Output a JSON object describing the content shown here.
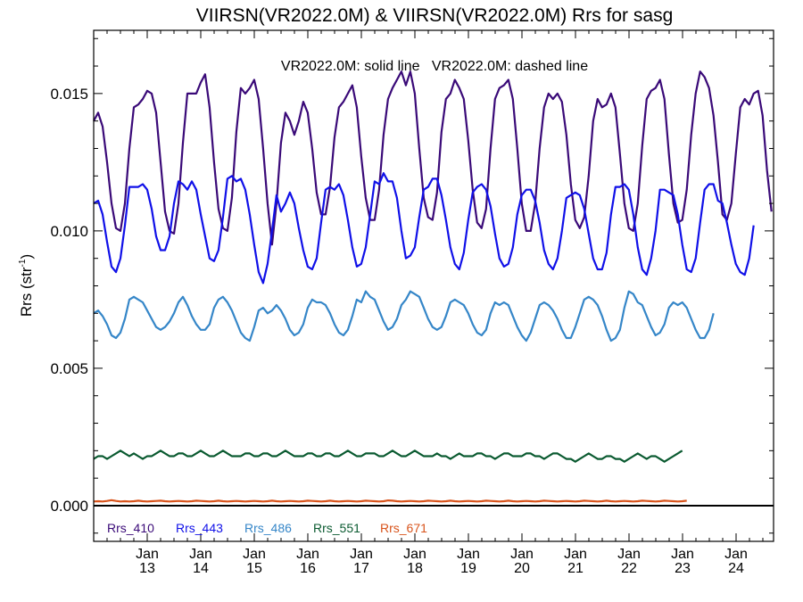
{
  "chart_data": {
    "type": "line",
    "title": "VIIRSN(VR2022.0M) & VIIRSN(VR2022.0M)  Rrs for sasg",
    "subtitle": "VR2022.0M: solid line   VR2022.0M: dashed line",
    "xlabel": "",
    "ylabel_main": "Rrs (str",
    "ylabel_sup": "-1",
    "ylabel_close": ")",
    "xlim": [
      12.0,
      24.7
    ],
    "ylim": [
      -0.0013,
      0.0173
    ],
    "x_ticks": [
      {
        "month": "Jan",
        "year": "13",
        "x": 13
      },
      {
        "month": "Jan",
        "year": "14",
        "x": 14
      },
      {
        "month": "Jan",
        "year": "15",
        "x": 15
      },
      {
        "month": "Jan",
        "year": "16",
        "x": 16
      },
      {
        "month": "Jan",
        "year": "17",
        "x": 17
      },
      {
        "month": "Jan",
        "year": "18",
        "x": 18
      },
      {
        "month": "Jan",
        "year": "19",
        "x": 19
      },
      {
        "month": "Jan",
        "year": "20",
        "x": 20
      },
      {
        "month": "Jan",
        "year": "21",
        "x": 21
      },
      {
        "month": "Jan",
        "year": "22",
        "x": 22
      },
      {
        "month": "Jan",
        "year": "23",
        "x": 23
      },
      {
        "month": "Jan",
        "year": "24",
        "x": 24
      }
    ],
    "y_ticks": [
      {
        "label": "0.000",
        "value": 0.0
      },
      {
        "label": "0.005",
        "value": 0.005
      },
      {
        "label": "0.010",
        "value": 0.01
      },
      {
        "label": "0.015",
        "value": 0.015
      }
    ],
    "zero_line": 0.0,
    "grid": false,
    "legend_position": "bottom-left",
    "series": [
      {
        "name": "Rrs_410",
        "color": "#3a0a78",
        "x_start": 12.0,
        "x_step": 0.0833,
        "values": [
          0.014,
          0.0143,
          0.0138,
          0.0125,
          0.011,
          0.0101,
          0.01,
          0.011,
          0.013,
          0.0145,
          0.0146,
          0.0148,
          0.0151,
          0.015,
          0.0143,
          0.0125,
          0.0107,
          0.01,
          0.0099,
          0.011,
          0.0132,
          0.015,
          0.015,
          0.015,
          0.0154,
          0.0157,
          0.0145,
          0.0125,
          0.0108,
          0.0101,
          0.01,
          0.0112,
          0.0136,
          0.0152,
          0.015,
          0.0152,
          0.0155,
          0.0148,
          0.013,
          0.011,
          0.0095,
          0.011,
          0.0132,
          0.0143,
          0.014,
          0.0135,
          0.014,
          0.0147,
          0.0143,
          0.013,
          0.0114,
          0.0106,
          0.0106,
          0.0116,
          0.0134,
          0.0145,
          0.0147,
          0.015,
          0.0153,
          0.0145,
          0.0127,
          0.0112,
          0.0104,
          0.0104,
          0.0115,
          0.0135,
          0.0148,
          0.0152,
          0.0155,
          0.0158,
          0.0153,
          0.0158,
          0.015,
          0.013,
          0.0112,
          0.0105,
          0.0104,
          0.0114,
          0.0136,
          0.0148,
          0.015,
          0.0155,
          0.0152,
          0.0148,
          0.0133,
          0.0115,
          0.0103,
          0.0101,
          0.0108,
          0.013,
          0.0148,
          0.0152,
          0.0153,
          0.0155,
          0.0148,
          0.013,
          0.011,
          0.01,
          0.01,
          0.011,
          0.013,
          0.0145,
          0.015,
          0.0148,
          0.015,
          0.0147,
          0.0135,
          0.0117,
          0.0104,
          0.0101,
          0.0105,
          0.012,
          0.014,
          0.0148,
          0.0145,
          0.0146,
          0.015,
          0.0145,
          0.0128,
          0.011,
          0.0101,
          0.01,
          0.011,
          0.0131,
          0.0148,
          0.0151,
          0.0152,
          0.0155,
          0.0148,
          0.0128,
          0.011,
          0.0103,
          0.0104,
          0.0115,
          0.0135,
          0.015,
          0.0158,
          0.0156,
          0.0152,
          0.0142,
          0.0125,
          0.0106,
          0.0104,
          0.011,
          0.0128,
          0.0145,
          0.0148,
          0.0146,
          0.015,
          0.0151,
          0.0142,
          0.0122,
          0.0107,
          0.0101,
          0.0105,
          0.0128
        ]
      },
      {
        "name": "Rrs_443",
        "color": "#1010e8",
        "x_start": 12.0,
        "x_step": 0.0833,
        "values": [
          0.011,
          0.0111,
          0.0106,
          0.0096,
          0.0087,
          0.0085,
          0.009,
          0.0102,
          0.0116,
          0.0116,
          0.0116,
          0.0117,
          0.0115,
          0.0108,
          0.0098,
          0.0093,
          0.0093,
          0.0098,
          0.011,
          0.0118,
          0.0117,
          0.0115,
          0.0118,
          0.0115,
          0.0106,
          0.0098,
          0.009,
          0.0089,
          0.0093,
          0.0105,
          0.0119,
          0.012,
          0.0118,
          0.0119,
          0.0115,
          0.0106,
          0.0095,
          0.0085,
          0.0081,
          0.0088,
          0.01,
          0.0113,
          0.0107,
          0.011,
          0.0114,
          0.011,
          0.0101,
          0.0093,
          0.0087,
          0.0086,
          0.009,
          0.0103,
          0.0115,
          0.0116,
          0.0115,
          0.0117,
          0.0113,
          0.0104,
          0.0094,
          0.0087,
          0.0088,
          0.0094,
          0.0106,
          0.0118,
          0.0117,
          0.0121,
          0.0118,
          0.0118,
          0.0112,
          0.01,
          0.009,
          0.0091,
          0.0094,
          0.0105,
          0.0115,
          0.0116,
          0.0119,
          0.0119,
          0.0113,
          0.0104,
          0.0094,
          0.0088,
          0.0086,
          0.0092,
          0.0104,
          0.0114,
          0.0116,
          0.0117,
          0.0115,
          0.0109,
          0.0099,
          0.009,
          0.0087,
          0.0088,
          0.0094,
          0.0106,
          0.0113,
          0.0115,
          0.0115,
          0.0111,
          0.0103,
          0.0093,
          0.0088,
          0.0086,
          0.009,
          0.01,
          0.0112,
          0.0113,
          0.0114,
          0.0113,
          0.0108,
          0.0099,
          0.009,
          0.0086,
          0.0086,
          0.0092,
          0.0106,
          0.0116,
          0.0116,
          0.0117,
          0.0115,
          0.0106,
          0.0094,
          0.0086,
          0.0084,
          0.009,
          0.01,
          0.0115,
          0.0115,
          0.0114,
          0.0113,
          0.0106,
          0.0095,
          0.0086,
          0.0085,
          0.009,
          0.0103,
          0.0115,
          0.0117,
          0.0117,
          0.0111,
          0.011,
          0.0103,
          0.0095,
          0.0088,
          0.0085,
          0.0084,
          0.009,
          0.0102
        ]
      },
      {
        "name": "Rrs_486",
        "color": "#3586c8",
        "x_start": 12.0,
        "x_step": 0.0833,
        "values": [
          0.007,
          0.0071,
          0.0069,
          0.0066,
          0.0062,
          0.0061,
          0.0063,
          0.0068,
          0.0075,
          0.0076,
          0.0075,
          0.0074,
          0.0071,
          0.0068,
          0.0065,
          0.0064,
          0.0065,
          0.0067,
          0.007,
          0.0074,
          0.0076,
          0.0073,
          0.0069,
          0.0066,
          0.0064,
          0.0064,
          0.0066,
          0.0072,
          0.0075,
          0.0076,
          0.0074,
          0.0071,
          0.0067,
          0.0063,
          0.0061,
          0.006,
          0.0065,
          0.0071,
          0.0072,
          0.007,
          0.0071,
          0.0073,
          0.0071,
          0.0068,
          0.0064,
          0.0062,
          0.0063,
          0.0066,
          0.0072,
          0.0075,
          0.0074,
          0.0074,
          0.0073,
          0.007,
          0.0066,
          0.0063,
          0.0062,
          0.0064,
          0.0069,
          0.0075,
          0.0074,
          0.0078,
          0.0076,
          0.0075,
          0.0071,
          0.0067,
          0.0064,
          0.0065,
          0.0068,
          0.0073,
          0.0075,
          0.0078,
          0.0077,
          0.0076,
          0.0072,
          0.0068,
          0.0065,
          0.0064,
          0.0065,
          0.0069,
          0.0074,
          0.0075,
          0.0074,
          0.0073,
          0.007,
          0.0066,
          0.0063,
          0.0062,
          0.0064,
          0.007,
          0.0074,
          0.0073,
          0.0074,
          0.0073,
          0.0069,
          0.0065,
          0.0062,
          0.006,
          0.0063,
          0.0068,
          0.0073,
          0.0074,
          0.0073,
          0.0071,
          0.0068,
          0.0064,
          0.0061,
          0.0061,
          0.0065,
          0.007,
          0.0075,
          0.0076,
          0.0075,
          0.0073,
          0.0069,
          0.0064,
          0.006,
          0.0061,
          0.0064,
          0.0072,
          0.0078,
          0.0077,
          0.0074,
          0.0073,
          0.0069,
          0.0065,
          0.0062,
          0.0063,
          0.0066,
          0.0072,
          0.0074,
          0.0073,
          0.0074,
          0.0072,
          0.0068,
          0.0064,
          0.0061,
          0.0061,
          0.0064,
          0.007
        ]
      },
      {
        "name": "Rrs_551",
        "color": "#0a5a30",
        "x_start": 12.0,
        "x_step": 0.0833,
        "values": [
          0.0017,
          0.0018,
          0.0018,
          0.0017,
          0.0018,
          0.0019,
          0.002,
          0.0019,
          0.0018,
          0.0019,
          0.0018,
          0.0017,
          0.0018,
          0.0018,
          0.0019,
          0.002,
          0.0019,
          0.0018,
          0.0018,
          0.0019,
          0.0019,
          0.0018,
          0.0018,
          0.0019,
          0.002,
          0.0019,
          0.0018,
          0.0018,
          0.0019,
          0.002,
          0.0019,
          0.0018,
          0.0018,
          0.0018,
          0.0019,
          0.0019,
          0.0018,
          0.0018,
          0.0019,
          0.0019,
          0.0018,
          0.0018,
          0.0019,
          0.002,
          0.0019,
          0.0018,
          0.0018,
          0.0018,
          0.0019,
          0.0019,
          0.0018,
          0.0018,
          0.0019,
          0.0019,
          0.0018,
          0.0018,
          0.0019,
          0.002,
          0.0019,
          0.0018,
          0.0018,
          0.0019,
          0.0019,
          0.0019,
          0.0018,
          0.0018,
          0.0019,
          0.002,
          0.0019,
          0.0018,
          0.0018,
          0.0019,
          0.002,
          0.0019,
          0.0018,
          0.0018,
          0.0018,
          0.0019,
          0.0018,
          0.0018,
          0.0017,
          0.0018,
          0.0019,
          0.0018,
          0.0018,
          0.0018,
          0.0019,
          0.0019,
          0.0018,
          0.0018,
          0.0017,
          0.0018,
          0.0019,
          0.0019,
          0.0018,
          0.0018,
          0.0018,
          0.0019,
          0.0019,
          0.0018,
          0.0018,
          0.0017,
          0.0018,
          0.0019,
          0.0019,
          0.0018,
          0.0017,
          0.0017,
          0.0016,
          0.0017,
          0.0018,
          0.0019,
          0.0018,
          0.0017,
          0.0017,
          0.0018,
          0.0018,
          0.0017,
          0.0017,
          0.0016,
          0.0017,
          0.0018,
          0.0019,
          0.0018,
          0.0017,
          0.0018,
          0.0018,
          0.0017,
          0.0016,
          0.0017,
          0.0018,
          0.0019,
          0.002
        ]
      },
      {
        "name": "Rrs_671",
        "color": "#d8541c",
        "x_start": 12.0,
        "x_step": 0.0833,
        "values": [
          0.00015,
          0.00016,
          0.00015,
          0.00017,
          0.0002,
          0.00017,
          0.00015,
          0.00016,
          0.00015,
          0.00016,
          0.00018,
          0.00016,
          0.00015,
          0.00016,
          0.00017,
          0.00018,
          0.00016,
          0.00015,
          0.00016,
          0.00017,
          0.00016,
          0.00015,
          0.00016,
          0.00018,
          0.00017,
          0.00016,
          0.00015,
          0.00016,
          0.00018,
          0.00016,
          0.00015,
          0.00016,
          0.00017,
          0.00016,
          0.00015,
          0.00016,
          0.00017,
          0.00016,
          0.00015,
          0.00016,
          0.00018,
          0.00016,
          0.00015,
          0.00016,
          0.00017,
          0.00016,
          0.00015,
          0.00016,
          0.00018,
          0.00017,
          0.00016,
          0.00015,
          0.00016,
          0.00018,
          0.00016,
          0.00015,
          0.00016,
          0.00017,
          0.00016,
          0.00015,
          0.00016,
          0.00018,
          0.00017,
          0.00016,
          0.00015,
          0.00016,
          0.00019,
          0.00018,
          0.00016,
          0.00015,
          0.00016,
          0.00017,
          0.00016,
          0.00015,
          0.00016,
          0.00018,
          0.00017,
          0.00016,
          0.00015,
          0.00016,
          0.00018,
          0.00016,
          0.00015,
          0.00016,
          0.00017,
          0.00016,
          0.00015,
          0.00016,
          0.00018,
          0.00017,
          0.00016,
          0.00015,
          0.00016,
          0.00018,
          0.00016,
          0.00015,
          0.00016,
          0.00017,
          0.00016,
          0.00015,
          0.00016,
          0.00018,
          0.00017,
          0.00016,
          0.00015,
          0.00016,
          0.00017,
          0.00016,
          0.00015,
          0.00016,
          0.00018,
          0.00017,
          0.00016,
          0.00015,
          0.00016,
          0.00018,
          0.00016,
          0.00015,
          0.00016,
          0.00017,
          0.00016,
          0.00015,
          0.00016,
          0.00018,
          0.00017,
          0.00016,
          0.00015,
          0.00016,
          0.00018,
          0.00017,
          0.00016,
          0.00015,
          0.00016,
          0.00018
        ]
      }
    ]
  }
}
